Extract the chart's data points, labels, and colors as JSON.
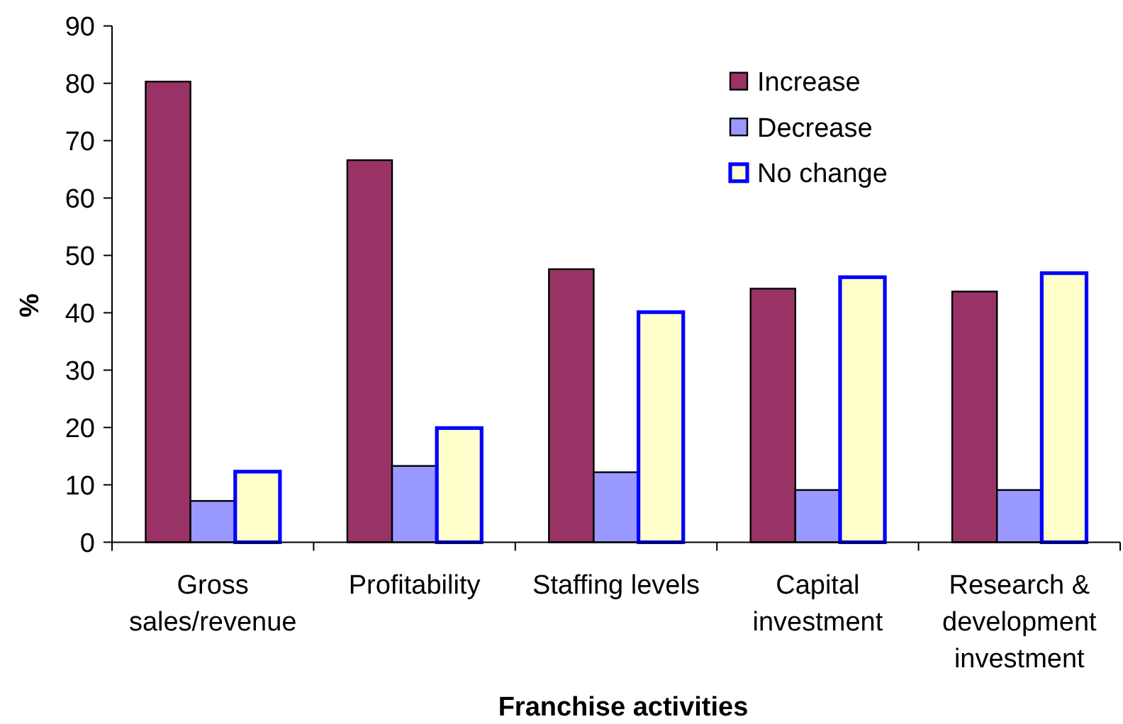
{
  "chart_data": {
    "type": "bar",
    "xlabel": "Franchise activities",
    "ylabel": "%",
    "categories": [
      "Gross sales/revenue",
      "Profitability",
      "Staffing levels",
      "Capital investment",
      "Research & development investment"
    ],
    "series": [
      {
        "name": "Increase",
        "color": "#993366",
        "values": [
          80.3,
          66.6,
          47.6,
          44.2,
          43.7
        ]
      },
      {
        "name": "Decrease",
        "color": "#9999ff",
        "values": [
          7.2,
          13.3,
          12.2,
          9.1,
          9.1
        ]
      },
      {
        "name": "No change",
        "color": "#ffffcc",
        "values": [
          12.3,
          19.9,
          40.1,
          46.2,
          46.9
        ]
      }
    ],
    "ylim": [
      0,
      90
    ],
    "yticks": [
      0,
      10,
      20,
      30,
      40,
      50,
      60,
      70,
      80,
      90
    ],
    "legend": "top right"
  }
}
